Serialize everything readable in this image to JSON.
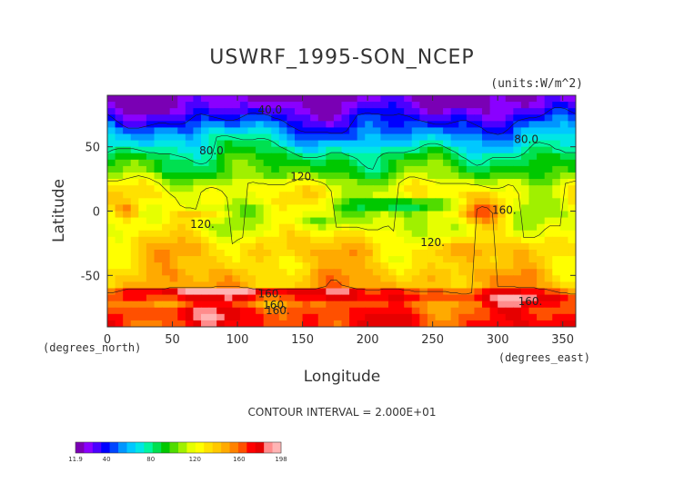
{
  "chart_data": {
    "type": "heatmap",
    "title": "USWRF_1995-SON_NCEP",
    "units": "(units:W/m^2)",
    "xlabel": "Longitude",
    "ylabel": "Latitude",
    "x_unit": "(degrees_east)",
    "y_unit": "(degrees_north)",
    "xlim": [
      0,
      360
    ],
    "ylim": [
      -90,
      90
    ],
    "x_ticks": [
      "0",
      "50",
      "100",
      "150",
      "200",
      "250",
      "300",
      "350"
    ],
    "x_tick_values": [
      0,
      50,
      100,
      150,
      200,
      250,
      300,
      350
    ],
    "y_ticks": [
      "50",
      "0",
      "-50"
    ],
    "y_tick_values": [
      50,
      0,
      -50
    ],
    "contour_interval": "CONTOUR INTERVAL = 2.000E+01",
    "colorbar": {
      "min": 11.9,
      "max": 198,
      "tick_labels": [
        "11.9",
        "40",
        "80",
        "120",
        "160",
        "198"
      ],
      "tick_values": [
        11.9,
        40,
        80,
        120,
        160,
        198
      ],
      "colors": [
        "#7a00b4",
        "#8a00ff",
        "#4b00ff",
        "#0000ff",
        "#0046ff",
        "#0096ff",
        "#00c8ff",
        "#00e6e6",
        "#00f5a0",
        "#00e050",
        "#00c800",
        "#50dc00",
        "#a0f000",
        "#e6ff00",
        "#ffff00",
        "#ffe100",
        "#ffc800",
        "#ffaa00",
        "#ff8200",
        "#ff5000",
        "#ff0000",
        "#e60000",
        "#ff8c8c",
        "#ffb4b4"
      ]
    },
    "zonal_profile": [
      {
        "lat": -90,
        "value": 170
      },
      {
        "lat": -80,
        "value": 165
      },
      {
        "lat": -72,
        "value": 158
      },
      {
        "lat": -65,
        "value": 175
      },
      {
        "lat": -58,
        "value": 145
      },
      {
        "lat": -50,
        "value": 142
      },
      {
        "lat": -40,
        "value": 135
      },
      {
        "lat": -30,
        "value": 140
      },
      {
        "lat": -20,
        "value": 128
      },
      {
        "lat": -10,
        "value": 120
      },
      {
        "lat": 0,
        "value": 115
      },
      {
        "lat": 10,
        "value": 125
      },
      {
        "lat": 20,
        "value": 120
      },
      {
        "lat": 30,
        "value": 98
      },
      {
        "lat": 40,
        "value": 90
      },
      {
        "lat": 50,
        "value": 72
      },
      {
        "lat": 60,
        "value": 58
      },
      {
        "lat": 70,
        "value": 40
      },
      {
        "lat": 80,
        "value": 24
      },
      {
        "lat": 90,
        "value": 14
      }
    ],
    "contour_labels": [
      {
        "text": "40.0",
        "lon": 125,
        "lat": 76
      },
      {
        "text": "80.0",
        "lon": 80,
        "lat": 44
      },
      {
        "text": "80.0",
        "lon": 322,
        "lat": 53
      },
      {
        "text": "120.",
        "lon": 150,
        "lat": 24
      },
      {
        "text": "120.",
        "lon": 73,
        "lat": -13
      },
      {
        "text": "120.",
        "lon": 250,
        "lat": -27
      },
      {
        "text": "160.",
        "lon": 125,
        "lat": -67
      },
      {
        "text": "160.",
        "lon": 129,
        "lat": -76
      },
      {
        "text": "160.",
        "lon": 131,
        "lat": -80
      },
      {
        "text": "160.",
        "lon": 325,
        "lat": -73
      },
      {
        "text": "160.",
        "lon": 305,
        "lat": -2
      }
    ]
  }
}
